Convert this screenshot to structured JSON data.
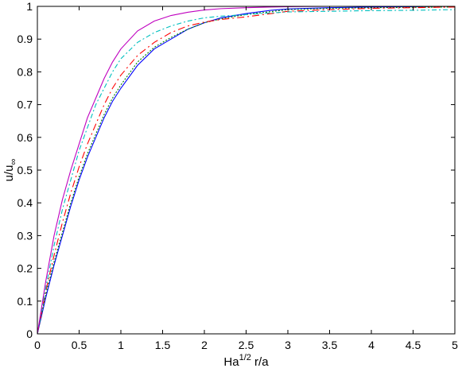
{
  "chart_data": {
    "type": "line",
    "xlabel": {
      "main": "Ha",
      "sup": "1/2",
      "rest": " r/a"
    },
    "ylabel": {
      "main": "u/u",
      "sub": "∞"
    },
    "xlim": [
      0,
      5
    ],
    "ylim": [
      0,
      1
    ],
    "xticks": [
      {
        "value": 0,
        "label": "0"
      },
      {
        "value": 0.5,
        "label": "0.5"
      },
      {
        "value": 1,
        "label": "1"
      },
      {
        "value": 1.5,
        "label": "1.5"
      },
      {
        "value": 2,
        "label": "2"
      },
      {
        "value": 2.5,
        "label": "2.5"
      },
      {
        "value": 3,
        "label": "3"
      },
      {
        "value": 3.5,
        "label": "3.5"
      },
      {
        "value": 4,
        "label": "4"
      },
      {
        "value": 4.5,
        "label": "4.5"
      },
      {
        "value": 5,
        "label": "5"
      }
    ],
    "yticks": [
      {
        "value": 0,
        "label": "0"
      },
      {
        "value": 0.1,
        "label": "0.1"
      },
      {
        "value": 0.2,
        "label": "0.2"
      },
      {
        "value": 0.3,
        "label": "0.3"
      },
      {
        "value": 0.4,
        "label": "0.4"
      },
      {
        "value": 0.5,
        "label": "0.5"
      },
      {
        "value": 0.6,
        "label": "0.6"
      },
      {
        "value": 0.7,
        "label": "0.7"
      },
      {
        "value": 0.8,
        "label": "0.8"
      },
      {
        "value": 0.9,
        "label": "0.9"
      },
      {
        "value": 1,
        "label": "1"
      }
    ],
    "grid": false,
    "series": [
      {
        "color": "#0000ff",
        "dash": "none",
        "x": [
          0,
          0.1,
          0.2,
          0.3,
          0.4,
          0.5,
          0.6,
          0.7,
          0.8,
          0.9,
          1.0,
          1.2,
          1.4,
          1.6,
          1.8,
          2.0,
          2.2,
          2.5,
          2.8,
          3.0,
          3.5,
          4.0,
          4.5,
          5.0
        ],
        "y": [
          0,
          0.11,
          0.21,
          0.3,
          0.39,
          0.47,
          0.54,
          0.6,
          0.66,
          0.71,
          0.75,
          0.82,
          0.87,
          0.9,
          0.93,
          0.95,
          0.965,
          0.978,
          0.988,
          0.992,
          0.996,
          0.998,
          0.999,
          1.0
        ]
      },
      {
        "color": "#008000",
        "dash": "2 2",
        "x": [
          0,
          0.1,
          0.2,
          0.3,
          0.4,
          0.5,
          0.6,
          0.7,
          0.8,
          0.9,
          1.0,
          1.2,
          1.4,
          1.6,
          1.8,
          2.0,
          2.2,
          2.5,
          2.8,
          3.0,
          3.5,
          4.0,
          4.5,
          5.0
        ],
        "y": [
          0,
          0.12,
          0.22,
          0.31,
          0.4,
          0.48,
          0.55,
          0.61,
          0.67,
          0.72,
          0.76,
          0.83,
          0.875,
          0.905,
          0.93,
          0.95,
          0.962,
          0.975,
          0.984,
          0.99,
          0.994,
          0.996,
          0.997,
          0.998
        ]
      },
      {
        "color": "#ff0000",
        "dash": "9 4 2 4",
        "x": [
          0,
          0.1,
          0.2,
          0.3,
          0.4,
          0.5,
          0.6,
          0.7,
          0.8,
          0.9,
          1.0,
          1.2,
          1.4,
          1.6,
          1.8,
          2.0,
          2.2,
          2.5,
          2.8,
          3.0,
          3.5,
          4.0,
          4.5,
          5.0
        ],
        "y": [
          0,
          0.13,
          0.24,
          0.34,
          0.43,
          0.51,
          0.58,
          0.64,
          0.7,
          0.75,
          0.79,
          0.85,
          0.89,
          0.92,
          0.94,
          0.952,
          0.96,
          0.968,
          0.978,
          0.985,
          0.99,
          0.994,
          0.996,
          0.998
        ]
      },
      {
        "color": "#00bfbf",
        "dash": "6 3 2 3",
        "x": [
          0,
          0.1,
          0.2,
          0.3,
          0.4,
          0.5,
          0.6,
          0.7,
          0.8,
          0.9,
          1.0,
          1.2,
          1.4,
          1.6,
          1.8,
          2.0,
          2.2,
          2.5,
          2.8,
          3.0,
          3.5,
          4.0,
          4.5,
          5.0
        ],
        "y": [
          0,
          0.14,
          0.27,
          0.38,
          0.47,
          0.56,
          0.63,
          0.7,
          0.75,
          0.8,
          0.84,
          0.89,
          0.92,
          0.94,
          0.955,
          0.965,
          0.97,
          0.975,
          0.98,
          0.983,
          0.985,
          0.987,
          0.988,
          0.99
        ]
      },
      {
        "color": "#bf00bf",
        "dash": "none",
        "x": [
          0,
          0.1,
          0.2,
          0.3,
          0.4,
          0.5,
          0.6,
          0.7,
          0.8,
          0.9,
          1.0,
          1.2,
          1.4,
          1.6,
          1.8,
          2.0,
          2.2,
          2.5,
          2.8,
          3.0,
          3.5,
          4.0,
          4.5,
          5.0
        ],
        "y": [
          0,
          0.16,
          0.3,
          0.41,
          0.5,
          0.58,
          0.66,
          0.72,
          0.78,
          0.83,
          0.87,
          0.925,
          0.955,
          0.972,
          0.982,
          0.989,
          0.993,
          0.996,
          0.998,
          0.999,
          1.0,
          1.0,
          1.0,
          1.0
        ]
      }
    ]
  }
}
